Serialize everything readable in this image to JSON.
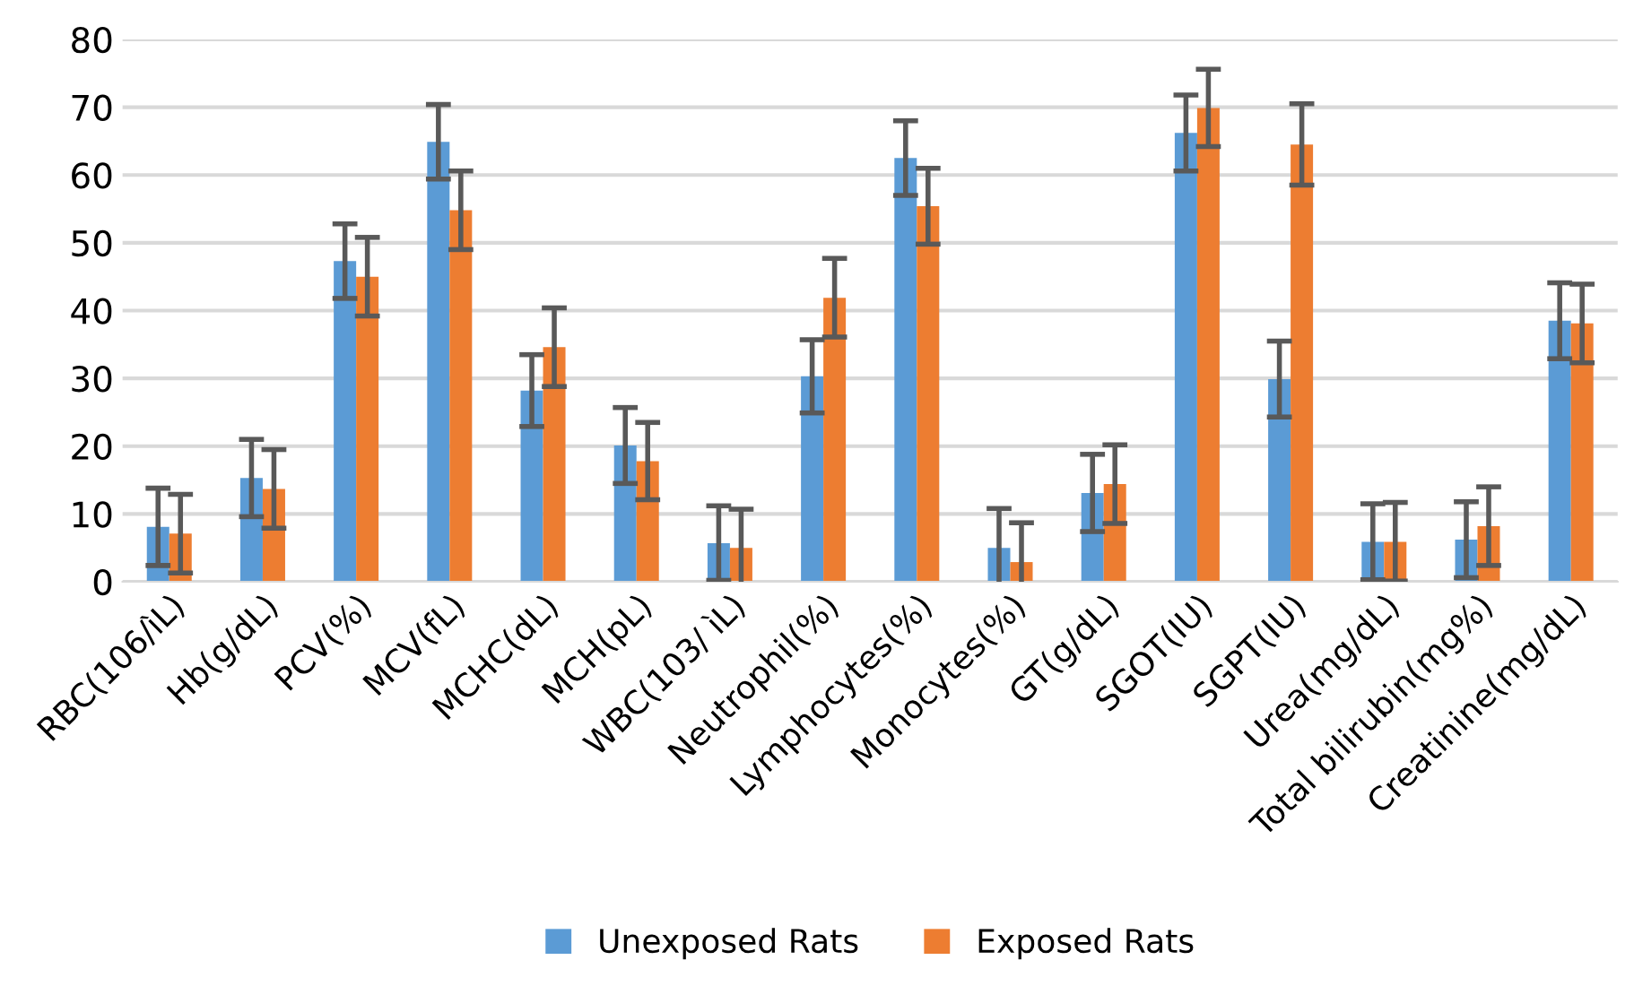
{
  "chart_data": {
    "type": "bar",
    "categories": [
      "RBC(106/ìL)",
      "Hb(g/dL)",
      "PCV(%)",
      "MCV(fL)",
      "MCHC(dL)",
      "MCH(pL)",
      "WBC(103/ ìL)",
      "Neutrophil(%)",
      "Lymphocytes(%)",
      "Monocytes(%)",
      "GT(g/dL)",
      "SGOT(IU)",
      "SGPT(IU)",
      "Urea(mg/dL)",
      "Total bilirubin(mg%)",
      "Creatinine(mg/dL)"
    ],
    "series": [
      {
        "name": "Unexposed Rats",
        "color": "#5b9bd5",
        "values": [
          8.1,
          15.3,
          47.3,
          64.9,
          28.2,
          20.1,
          5.7,
          30.3,
          62.5,
          5.0,
          13.1,
          66.2,
          29.9,
          5.9,
          6.2,
          38.5
        ],
        "errors": [
          5.7,
          5.7,
          5.5,
          5.5,
          5.3,
          5.6,
          5.5,
          5.4,
          5.5,
          5.8,
          5.7,
          5.6,
          5.6,
          5.6,
          5.6,
          5.6
        ]
      },
      {
        "name": "Exposed Rats",
        "color": "#ed7d31",
        "values": [
          7.1,
          13.7,
          45.0,
          54.8,
          34.6,
          17.8,
          5.0,
          41.9,
          55.4,
          2.9,
          14.4,
          69.9,
          64.5,
          5.9,
          8.2,
          38.1
        ],
        "errors": [
          5.8,
          5.8,
          5.8,
          5.8,
          5.8,
          5.7,
          5.7,
          5.8,
          5.6,
          5.8,
          5.8,
          5.7,
          6.0,
          5.8,
          5.8,
          5.8
        ]
      }
    ],
    "ylim": [
      0,
      80
    ],
    "yticks": [
      0,
      10,
      20,
      30,
      40,
      50,
      60,
      70,
      80
    ],
    "grid": "y",
    "legend": "bottom"
  }
}
